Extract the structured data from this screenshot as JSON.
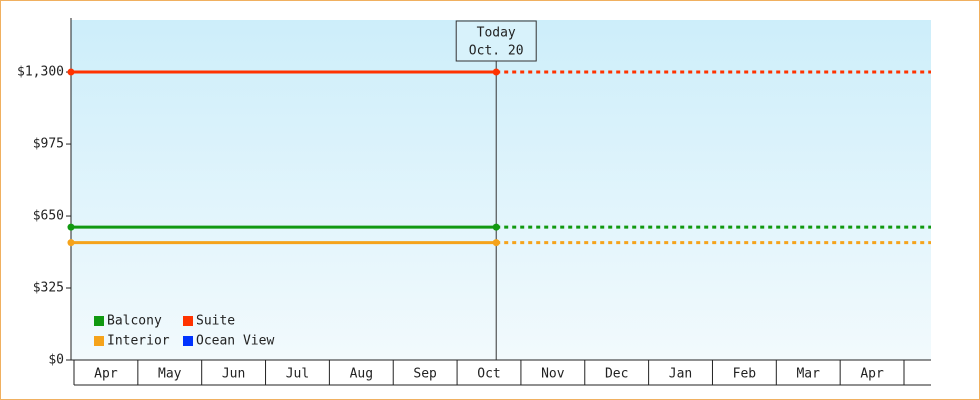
{
  "chart_data": {
    "type": "line",
    "categories": [
      "Apr",
      "May",
      "Jun",
      "Jul",
      "Aug",
      "Sep",
      "Oct",
      "Nov",
      "Dec",
      "Jan",
      "Feb",
      "Mar",
      "Apr"
    ],
    "x": [
      "Apr",
      "Oct. 20"
    ],
    "today_label": "Today",
    "series": [
      {
        "name": "Balcony",
        "color": "#119911",
        "values": [
          600,
          600
        ]
      },
      {
        "name": "Suite",
        "color": "#ff3300",
        "values": [
          1300,
          1300
        ]
      },
      {
        "name": "Interior",
        "color": "#f5a31b",
        "values": [
          530,
          530
        ]
      },
      {
        "name": "Ocean View",
        "color": "#0033ff",
        "values": [
          null,
          null
        ]
      }
    ],
    "ylim": [
      0,
      1535
    ],
    "yticks": [
      {
        "value": 0,
        "label": "$0"
      },
      {
        "value": 325,
        "label": "$325"
      },
      {
        "value": 650,
        "label": "$650"
      },
      {
        "value": 975,
        "label": "$975"
      },
      {
        "value": 1300,
        "label": "$1,300"
      }
    ],
    "grid": false
  }
}
